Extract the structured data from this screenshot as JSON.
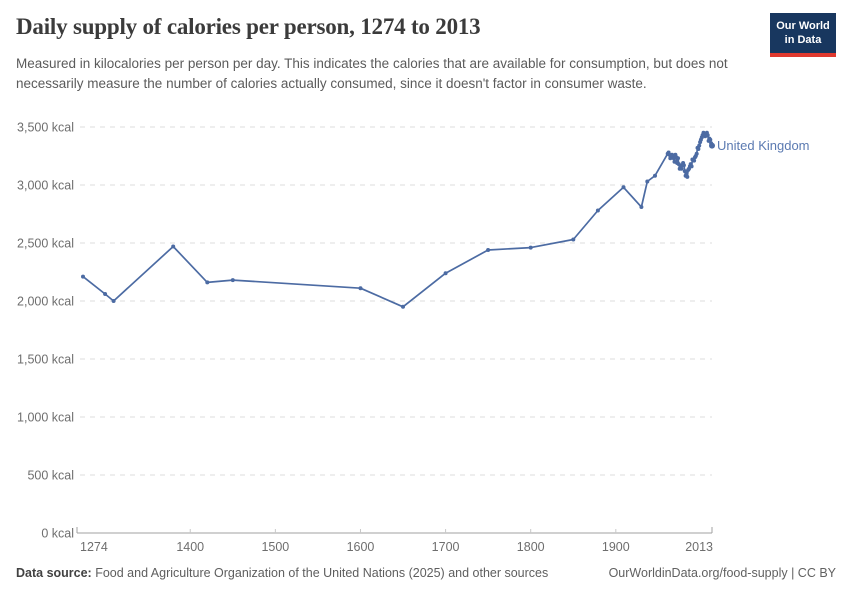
{
  "header": {
    "title": "Daily supply of calories per person, 1274 to 2013",
    "subtitle": "Measured in kilocalories per person per day. This indicates the calories that are available for consumption, but does not necessarily measure the number of calories actually consumed, since it doesn't factor in consumer waste.",
    "logo": {
      "line1": "Our World",
      "line2": "in Data"
    }
  },
  "footer": {
    "source_label": "Data source:",
    "source_text": " Food and Agriculture Organization of the United Nations (2025) and other sources",
    "credit": "OurWorldinData.org/food-supply | CC BY"
  },
  "colors": {
    "line": "#4c6ba3",
    "entity_label": "#5b7ab1",
    "grid": "#dedede",
    "axis": "#a1a1a1",
    "tick": "#c8c8c8",
    "tick_text": "#6e6e6e",
    "logo_bg": "#18375f",
    "logo_red": "#e0392f"
  },
  "chart_data": {
    "type": "line",
    "title": "Daily supply of calories per person, 1274 to 2013",
    "unit": "kcal",
    "xlim": [
      1274,
      2013
    ],
    "ylim": [
      0,
      3500
    ],
    "grid": true,
    "legend_position": "end-of-line",
    "x_ticks": [
      1274,
      1400,
      1500,
      1600,
      1700,
      1800,
      1900,
      2013
    ],
    "y_ticks": [
      {
        "v": 0,
        "label": "0 kcal"
      },
      {
        "v": 500,
        "label": "500 kcal"
      },
      {
        "v": 1000,
        "label": "1,000 kcal"
      },
      {
        "v": 1500,
        "label": "1,500 kcal"
      },
      {
        "v": 2000,
        "label": "2,000 kcal"
      },
      {
        "v": 2500,
        "label": "2,500 kcal"
      },
      {
        "v": 3000,
        "label": "3,000 kcal"
      },
      {
        "v": 3500,
        "label": "3,500 kcal"
      }
    ],
    "series": [
      {
        "name": "United Kingdom",
        "points": [
          [
            1274,
            2210
          ],
          [
            1300,
            2060
          ],
          [
            1310,
            2000
          ],
          [
            1380,
            2470
          ],
          [
            1420,
            2160
          ],
          [
            1450,
            2180
          ],
          [
            1600,
            2110
          ],
          [
            1650,
            1950
          ],
          [
            1700,
            2240
          ],
          [
            1750,
            2440
          ],
          [
            1800,
            2460
          ],
          [
            1850,
            2530
          ],
          [
            1879,
            2780
          ],
          [
            1909,
            2980
          ],
          [
            1930,
            2810
          ],
          [
            1937,
            3030
          ],
          [
            1946,
            3080
          ],
          [
            1961,
            3270
          ],
          [
            1962,
            3280
          ],
          [
            1963,
            3260
          ],
          [
            1964,
            3230
          ],
          [
            1965,
            3250
          ],
          [
            1966,
            3260
          ],
          [
            1967,
            3250
          ],
          [
            1968,
            3230
          ],
          [
            1969,
            3200
          ],
          [
            1970,
            3260
          ],
          [
            1971,
            3240
          ],
          [
            1972,
            3190
          ],
          [
            1973,
            3230
          ],
          [
            1974,
            3180
          ],
          [
            1975,
            3140
          ],
          [
            1976,
            3160
          ],
          [
            1977,
            3140
          ],
          [
            1978,
            3170
          ],
          [
            1979,
            3190
          ],
          [
            1980,
            3170
          ],
          [
            1981,
            3120
          ],
          [
            1982,
            3080
          ],
          [
            1983,
            3100
          ],
          [
            1984,
            3070
          ],
          [
            1985,
            3130
          ],
          [
            1986,
            3140
          ],
          [
            1987,
            3160
          ],
          [
            1988,
            3180
          ],
          [
            1989,
            3160
          ],
          [
            1990,
            3220
          ],
          [
            1991,
            3220
          ],
          [
            1992,
            3210
          ],
          [
            1993,
            3240
          ],
          [
            1994,
            3250
          ],
          [
            1995,
            3270
          ],
          [
            1996,
            3320
          ],
          [
            1997,
            3310
          ],
          [
            1998,
            3340
          ],
          [
            1999,
            3370
          ],
          [
            2000,
            3390
          ],
          [
            2001,
            3410
          ],
          [
            2002,
            3430
          ],
          [
            2003,
            3450
          ],
          [
            2004,
            3440
          ],
          [
            2005,
            3420
          ],
          [
            2006,
            3430
          ],
          [
            2007,
            3450
          ],
          [
            2008,
            3430
          ],
          [
            2009,
            3380
          ],
          [
            2010,
            3400
          ],
          [
            2011,
            3390
          ],
          [
            2012,
            3360
          ],
          [
            2013,
            3340
          ]
        ]
      }
    ]
  }
}
